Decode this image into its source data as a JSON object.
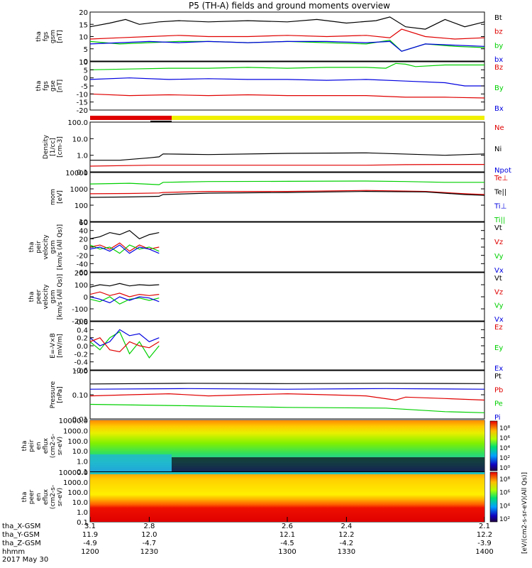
{
  "title": "P5 (TH-A) fields and ground moments overview",
  "colors": {
    "black": "#000000",
    "red": "#e00000",
    "green": "#00d000",
    "blue": "#0000e0",
    "yellow": "#f0f000",
    "bar_red": "#e00000"
  },
  "chart_data": [
    {
      "type": "line",
      "id": "fgs-gsm",
      "ylabel": [
        "tha",
        "fgs",
        "gsm",
        "[nT]"
      ],
      "ylim": [
        0,
        20
      ],
      "yticks": [
        "20",
        "15",
        "10",
        "5",
        "0"
      ],
      "legend": [
        {
          "label": "Bt",
          "color": "#000000"
        },
        {
          "label": "bz",
          "color": "#e00000"
        },
        {
          "label": "by",
          "color": "#00d000"
        },
        {
          "label": "bx",
          "color": "#0000e0"
        }
      ],
      "series": [
        {
          "color": "#000000",
          "x": [
            1200,
            1210,
            1218,
            1225,
            1235,
            1245,
            1260,
            1280,
            1300,
            1315,
            1330,
            1345,
            1352,
            1360,
            1370,
            1380,
            1390,
            1400
          ],
          "y": [
            14,
            15.5,
            17,
            15,
            16,
            16.5,
            16,
            16.5,
            16,
            17,
            15.5,
            16.5,
            18,
            14,
            13,
            17,
            14,
            16
          ]
        },
        {
          "color": "#e00000",
          "x": [
            1200,
            1215,
            1230,
            1245,
            1260,
            1280,
            1300,
            1320,
            1340,
            1352,
            1358,
            1370,
            1385,
            1400
          ],
          "y": [
            9,
            9.5,
            10,
            10.5,
            10,
            10,
            10.5,
            10,
            10.5,
            9.5,
            13,
            10,
            9,
            9.5
          ]
        },
        {
          "color": "#00d000",
          "x": [
            1200,
            1215,
            1230,
            1245,
            1260,
            1280,
            1300,
            1320,
            1340,
            1352,
            1358,
            1370,
            1385,
            1400
          ],
          "y": [
            8,
            7,
            7.5,
            8,
            8,
            7.5,
            8,
            7.5,
            7,
            8.5,
            4,
            7,
            6,
            5.5
          ]
        },
        {
          "color": "#0000e0",
          "x": [
            1200,
            1215,
            1230,
            1245,
            1260,
            1280,
            1300,
            1320,
            1340,
            1352,
            1358,
            1370,
            1385,
            1400
          ],
          "y": [
            7,
            7.5,
            8,
            7.5,
            8,
            7.5,
            8,
            8,
            7.5,
            8,
            4,
            7,
            6.5,
            6
          ]
        }
      ]
    },
    {
      "type": "line",
      "id": "fgs-gse",
      "ylabel": [
        "tha",
        "fgs",
        "gse",
        "[nT]"
      ],
      "ylim": [
        -20,
        10
      ],
      "yticks": [
        "10",
        "5",
        "0",
        "-5",
        "-10",
        "-15",
        "-20"
      ],
      "legend": [
        {
          "label": "Bz",
          "color": "#e00000"
        },
        {
          "label": "By",
          "color": "#00d000"
        },
        {
          "label": "Bx",
          "color": "#0000e0"
        }
      ],
      "series": [
        {
          "color": "#00d000",
          "x": [
            1200,
            1220,
            1240,
            1260,
            1280,
            1300,
            1320,
            1340,
            1350,
            1355,
            1360,
            1365,
            1380,
            1400
          ],
          "y": [
            5,
            5.5,
            6,
            6,
            6.5,
            6,
            6.5,
            6.5,
            6,
            9,
            8.5,
            7,
            8,
            8
          ]
        },
        {
          "color": "#0000e0",
          "x": [
            1200,
            1220,
            1240,
            1260,
            1280,
            1300,
            1320,
            1340,
            1360,
            1380,
            1390,
            1400
          ],
          "y": [
            -1,
            0,
            -1,
            -0.5,
            -1,
            -1,
            -1.5,
            -1,
            -2,
            -3,
            -5,
            -5
          ]
        },
        {
          "color": "#e00000",
          "x": [
            1200,
            1220,
            1240,
            1260,
            1280,
            1300,
            1320,
            1340,
            1360,
            1380,
            1400
          ],
          "y": [
            -10,
            -11,
            -10.5,
            -11,
            -10.5,
            -11,
            -11,
            -11,
            -12,
            -12,
            -12.5
          ]
        }
      ]
    },
    {
      "type": "line",
      "id": "density",
      "log": true,
      "ylabel": [
        "Density",
        "[1/cc]",
        "[cm-3]"
      ],
      "ylim": [
        0.1,
        100
      ],
      "yticks": [
        "100.0",
        "10.0",
        "1.0",
        "0.1"
      ],
      "legend": [
        {
          "label": "Ne",
          "color": "#e00000"
        },
        {
          "label": "Ni",
          "color": "#000000"
        },
        {
          "label": "Npot",
          "color": "#0000e0"
        }
      ],
      "series": [
        {
          "color": "#e00000",
          "x": [
            1200,
            1230,
            1260,
            1300,
            1340,
            1360,
            1380,
            1400
          ],
          "y": [
            0.22,
            0.25,
            0.25,
            0.25,
            0.25,
            0.27,
            0.28,
            0.28
          ]
        },
        {
          "color": "#000000",
          "x": [
            1200,
            1215,
            1230,
            1235,
            1237,
            1260,
            1300,
            1340,
            1380,
            1400
          ],
          "y": [
            0.5,
            0.5,
            0.7,
            0.8,
            1.2,
            1.1,
            1.3,
            1.4,
            1.0,
            1.2
          ]
        }
      ]
    },
    {
      "type": "line",
      "id": "temperature",
      "log": true,
      "ylabel": [
        "mom",
        "[eV]"
      ],
      "ylim": [
        10,
        10000
      ],
      "yticks": [
        "10000",
        "1000",
        "100",
        "10"
      ],
      "legend": [
        {
          "label": "Te⊥",
          "color": "#e00000"
        },
        {
          "label": "Te||",
          "color": "#000000"
        },
        {
          "label": "Ti⊥",
          "color": "#0000e0"
        },
        {
          "label": "Ti||",
          "color": "#00d000"
        }
      ],
      "series": [
        {
          "color": "#00d000",
          "x": [
            1200,
            1220,
            1235,
            1237,
            1260,
            1300,
            1340,
            1360,
            1380,
            1400
          ],
          "y": [
            2000,
            2200,
            1800,
            2500,
            2800,
            2900,
            3000,
            2800,
            2500,
            2500
          ]
        },
        {
          "color": "#e00000",
          "x": [
            1200,
            1220,
            1235,
            1237,
            1260,
            1300,
            1340,
            1370,
            1390,
            1400
          ],
          "y": [
            500,
            520,
            560,
            600,
            700,
            700,
            800,
            700,
            500,
            450
          ]
        },
        {
          "color": "#000000",
          "x": [
            1200,
            1220,
            1235,
            1237,
            1260,
            1300,
            1340,
            1370,
            1390,
            1400
          ],
          "y": [
            300,
            320,
            350,
            450,
            550,
            600,
            700,
            650,
            450,
            400
          ]
        }
      ]
    },
    {
      "type": "line",
      "id": "peir-velocity",
      "ylabel": [
        "tha",
        "peir",
        "velocity",
        "gsm",
        "[km/s (All Qs)]"
      ],
      "ylim": [
        -60,
        60
      ],
      "yticks": [
        "60",
        "40",
        "20",
        "0",
        "-20",
        "-40",
        "-60"
      ],
      "legend": [
        {
          "label": "Vt",
          "color": "#000000"
        },
        {
          "label": "Vz",
          "color": "#e00000"
        },
        {
          "label": "Vy",
          "color": "#00d000"
        },
        {
          "label": "Vx",
          "color": "#0000e0"
        }
      ],
      "series": [
        {
          "color": "#000000",
          "x": [
            1200,
            1205,
            1210,
            1215,
            1220,
            1225,
            1230,
            1235
          ],
          "y": [
            20,
            25,
            35,
            30,
            40,
            20,
            30,
            35
          ]
        },
        {
          "color": "#e00000",
          "x": [
            1200,
            1205,
            1210,
            1215,
            1220,
            1225,
            1230,
            1235
          ],
          "y": [
            0,
            5,
            -5,
            10,
            -10,
            5,
            -5,
            0
          ]
        },
        {
          "color": "#00d000",
          "x": [
            1200,
            1205,
            1210,
            1215,
            1220,
            1225,
            1230,
            1235
          ],
          "y": [
            5,
            -5,
            0,
            -15,
            5,
            -5,
            0,
            -10
          ]
        },
        {
          "color": "#0000e0",
          "x": [
            1200,
            1205,
            1210,
            1215,
            1220,
            1225,
            1230,
            1235
          ],
          "y": [
            -5,
            0,
            -10,
            5,
            -15,
            0,
            -5,
            -15
          ]
        }
      ]
    },
    {
      "type": "line",
      "id": "peer-velocity",
      "ylabel": [
        "tha",
        "peer",
        "velocity",
        "gsm",
        "[km/s (All Qs)]"
      ],
      "ylim": [
        -200,
        200
      ],
      "yticks": [
        "200",
        "100",
        "0",
        "-100",
        "-200"
      ],
      "legend": [
        {
          "label": "Vt",
          "color": "#000000"
        },
        {
          "label": "Vz",
          "color": "#e00000"
        },
        {
          "label": "Vy",
          "color": "#00d000"
        },
        {
          "label": "Vx",
          "color": "#0000e0"
        }
      ],
      "series": [
        {
          "color": "#000000",
          "x": [
            1200,
            1205,
            1210,
            1215,
            1220,
            1225,
            1230,
            1235
          ],
          "y": [
            80,
            100,
            90,
            110,
            90,
            100,
            95,
            100
          ]
        },
        {
          "color": "#e00000",
          "x": [
            1200,
            1205,
            1210,
            1215,
            1220,
            1225,
            1230,
            1235
          ],
          "y": [
            20,
            40,
            10,
            30,
            0,
            20,
            10,
            20
          ]
        },
        {
          "color": "#00d000",
          "x": [
            1200,
            1205,
            1210,
            1215,
            1220,
            1225,
            1230,
            1235
          ],
          "y": [
            -20,
            -40,
            0,
            -60,
            -20,
            -10,
            -30,
            -10
          ]
        },
        {
          "color": "#0000e0",
          "x": [
            1200,
            1205,
            1210,
            1215,
            1220,
            1225,
            1230,
            1235
          ],
          "y": [
            0,
            -20,
            -50,
            0,
            -30,
            0,
            -10,
            -40
          ]
        }
      ]
    },
    {
      "type": "line",
      "id": "e-field",
      "ylabel": [
        "E=-V×B",
        "[mV/m]"
      ],
      "ylim": [
        -0.6,
        0.6
      ],
      "yticks": [
        "0.6",
        "0.4",
        "0.2",
        "0.0",
        "-0.2",
        "-0.4",
        "-0.6"
      ],
      "legend": [
        {
          "label": "Ez",
          "color": "#e00000"
        },
        {
          "label": "Ey",
          "color": "#00d000"
        },
        {
          "label": "Ex",
          "color": "#0000e0"
        }
      ],
      "series": [
        {
          "color": "#00d000",
          "x": [
            1200,
            1205,
            1210,
            1215,
            1220,
            1225,
            1230,
            1235
          ],
          "y": [
            0.1,
            -0.1,
            0.2,
            0.35,
            -0.2,
            0.1,
            -0.3,
            0.0
          ]
        },
        {
          "color": "#0000e0",
          "x": [
            1200,
            1205,
            1210,
            1215,
            1220,
            1225,
            1230,
            1235
          ],
          "y": [
            0.2,
            0.0,
            0.1,
            0.4,
            0.25,
            0.3,
            0.1,
            0.2
          ]
        },
        {
          "color": "#e00000",
          "x": [
            1200,
            1205,
            1210,
            1215,
            1220,
            1225,
            1230,
            1235
          ],
          "y": [
            0.1,
            0.2,
            -0.1,
            -0.15,
            0.1,
            0.0,
            -0.05,
            0.1
          ]
        }
      ]
    },
    {
      "type": "line",
      "id": "pressure",
      "log": true,
      "ylabel": [
        "Pressure",
        "[nPa]"
      ],
      "ylim": [
        0.01,
        1.0
      ],
      "yticks": [
        "1.00",
        "0.10",
        "0.01"
      ],
      "legend": [
        {
          "label": "Pt",
          "color": "#000000"
        },
        {
          "label": "Pb",
          "color": "#e00000"
        },
        {
          "label": "Pe",
          "color": "#00d000"
        },
        {
          "label": "Pi",
          "color": "#0000e0"
        }
      ],
      "series": [
        {
          "color": "#000000",
          "x": [
            1200,
            1250,
            1300,
            1350,
            1400
          ],
          "y": [
            0.28,
            0.3,
            0.29,
            0.3,
            0.29
          ]
        },
        {
          "color": "#0000e0",
          "x": [
            1200,
            1250,
            1300,
            1350,
            1400
          ],
          "y": [
            0.17,
            0.18,
            0.17,
            0.18,
            0.17
          ]
        },
        {
          "color": "#e00000",
          "x": [
            1200,
            1220,
            1240,
            1260,
            1280,
            1300,
            1320,
            1340,
            1355,
            1360,
            1380,
            1400
          ],
          "y": [
            0.09,
            0.1,
            0.11,
            0.09,
            0.1,
            0.11,
            0.1,
            0.09,
            0.06,
            0.08,
            0.07,
            0.06
          ]
        },
        {
          "color": "#00d000",
          "x": [
            1200,
            1250,
            1300,
            1350,
            1380,
            1400
          ],
          "y": [
            0.04,
            0.035,
            0.03,
            0.028,
            0.02,
            0.018
          ]
        }
      ]
    },
    {
      "type": "heatmap",
      "id": "peir-en-eflux",
      "ylabel": [
        "tha",
        "peir",
        "en",
        "eflux",
        "(cm2-s-",
        "sr-eV)"
      ],
      "yticks": [
        "10000.0",
        "1000.0",
        "100.0",
        "10.0",
        "1.0",
        "0.1"
      ]
    },
    {
      "type": "heatmap",
      "id": "peer-en-eflux",
      "ylabel": [
        "tha",
        "peer",
        "en",
        "eflux",
        "(cm2-s-",
        "sr-eV)"
      ],
      "yticks": [
        "10000.0",
        "1000.0",
        "100.0",
        "10.0",
        "1.0",
        "0.1"
      ]
    }
  ],
  "colorbar": {
    "label": "[eV/(cm2-s-sr-eV)(All Qs)]",
    "ticks_top": [
      "10⁸",
      "10⁶",
      "10⁴",
      "10²",
      "10⁰"
    ],
    "ticks_bottom": [
      "10⁸",
      "10⁶",
      "10⁴",
      "10²"
    ]
  },
  "xaxis": {
    "row_labels": [
      "tha_X-GSM",
      "tha_Y-GSM",
      "tha_Z-GSM",
      "hhmm",
      "2017 May 30"
    ],
    "ticks": [
      {
        "x": 1200,
        "vals": [
          "3.1",
          "11.9",
          "-4.9",
          "1200"
        ]
      },
      {
        "x": 1230,
        "vals": [
          "2.8",
          "12.0",
          "-4.7",
          "1230"
        ]
      },
      {
        "x": 1300,
        "vals": [
          "2.6",
          "12.1",
          "-4.5",
          "1300"
        ]
      },
      {
        "x": 1330,
        "vals": [
          "2.4",
          "12.2",
          "-4.2",
          "1330"
        ]
      },
      {
        "x": 1400,
        "vals": [
          "2.1",
          "12.2",
          "-3.9",
          "1400"
        ]
      }
    ]
  }
}
